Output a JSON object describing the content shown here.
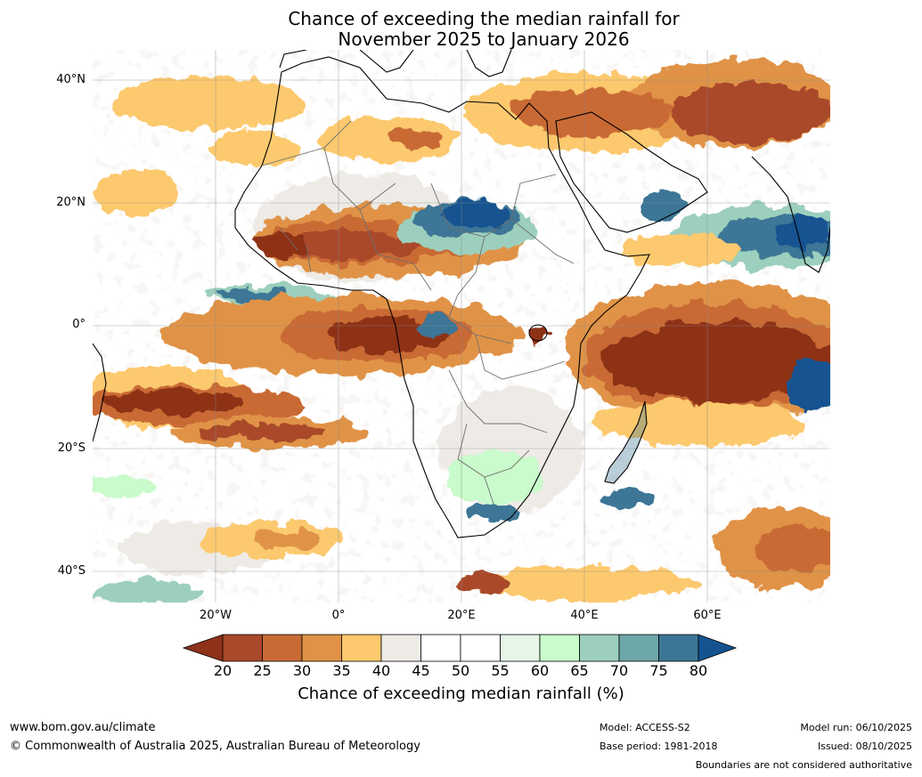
{
  "title": {
    "line1": "Chance of exceeding the median rainfall for",
    "line2": "November 2025 to January 2026"
  },
  "axes": {
    "lat_labels": [
      "40°N",
      "20°N",
      "0°",
      "20°S",
      "40°S"
    ],
    "lon_labels": [
      "20°W",
      "0°",
      "20°E",
      "40°E",
      "60°E"
    ]
  },
  "colorbar": {
    "ticks": [
      "20",
      "25",
      "30",
      "35",
      "40",
      "45",
      "50",
      "55",
      "60",
      "65",
      "70",
      "75",
      "80"
    ],
    "title": "Chance of exceeding median rainfall (%)",
    "colors": [
      "#8e3219",
      "#a9482a",
      "#c96a35",
      "#e09347",
      "#fcc96e",
      "#eeebe6",
      "#ffffff",
      "#ffffff",
      "#e6f5e6",
      "#c9fbcc",
      "#9ccfbd",
      "#6ea7a8",
      "#3c7696",
      "#145390"
    ]
  },
  "footer": {
    "website": "www.bom.gov.au/climate",
    "copyright": "© Commonwealth of Australia 2025, Australian Bureau of Meteorology",
    "model": "Model: ACCESS-S2",
    "base_period": "Base period: 1981-2018",
    "model_run": "Model run: 06/10/2025",
    "issued": "Issued: 08/10/2025",
    "disclaimer": "Boundaries are not considered authoritative"
  }
}
